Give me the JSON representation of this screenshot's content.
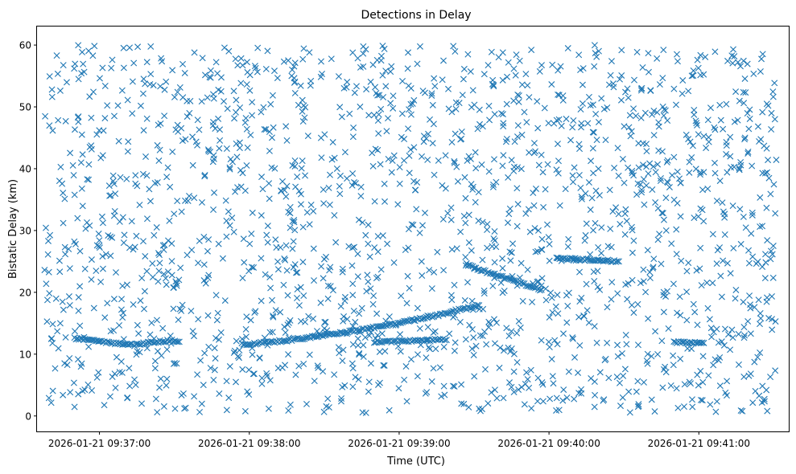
{
  "chart_data": {
    "type": "scatter",
    "title": "Detections in Delay",
    "xlabel": "Time (UTC)",
    "ylabel": "Bistatic Delay (km)",
    "x_unit": "seconds of 2026-01-21 09:36",
    "x_ticks": [
      {
        "t": 60,
        "label": "2026-01-21 09:37:00"
      },
      {
        "t": 120,
        "label": "2026-01-21 09:38:00"
      },
      {
        "t": 180,
        "label": "2026-01-21 09:39:00"
      },
      {
        "t": 240,
        "label": "2026-01-21 09:40:00"
      },
      {
        "t": 300,
        "label": "2026-01-21 09:41:00"
      }
    ],
    "y_ticks": [
      0,
      10,
      20,
      30,
      40,
      50,
      60
    ],
    "xlim": [
      35,
      336
    ],
    "ylim": [
      -2.5,
      63
    ],
    "marker": "x",
    "color": "#1f77b4",
    "grid": false,
    "track_series": [
      {
        "points": [
          [
            50,
            12.6
          ],
          [
            53,
            12.4
          ],
          [
            56,
            12.2
          ],
          [
            59,
            12.1
          ],
          [
            62,
            11.9
          ],
          [
            65,
            11.8
          ],
          [
            68,
            11.7
          ],
          [
            71,
            11.6
          ],
          [
            74,
            11.5
          ],
          [
            77,
            11.7
          ],
          [
            80,
            11.9
          ],
          [
            83,
            12.0
          ],
          [
            86,
            12.1
          ],
          [
            89,
            12.2
          ],
          [
            92,
            12.0
          ]
        ]
      },
      {
        "points": [
          [
            117,
            11.6
          ],
          [
            122,
            11.7
          ],
          [
            127,
            11.9
          ],
          [
            132,
            12.1
          ],
          [
            137,
            12.3
          ],
          [
            142,
            12.6
          ],
          [
            147,
            12.9
          ],
          [
            152,
            13.2
          ],
          [
            157,
            13.5
          ],
          [
            162,
            13.8
          ],
          [
            167,
            14.1
          ],
          [
            172,
            14.4
          ],
          [
            177,
            14.8
          ],
          [
            182,
            15.2
          ],
          [
            187,
            15.6
          ],
          [
            192,
            16.0
          ],
          [
            197,
            16.4
          ],
          [
            202,
            17.0
          ],
          [
            207,
            17.4
          ],
          [
            212,
            17.9
          ]
        ]
      },
      {
        "points": [
          [
            170,
            12.0
          ],
          [
            175,
            12.0
          ],
          [
            180,
            12.1
          ],
          [
            185,
            12.2
          ],
          [
            190,
            12.2
          ],
          [
            195,
            12.3
          ],
          [
            199,
            12.3
          ]
        ]
      },
      {
        "points": [
          [
            207,
            24.5
          ],
          [
            212,
            23.7
          ],
          [
            217,
            23.0
          ],
          [
            222,
            22.4
          ],
          [
            227,
            21.7
          ],
          [
            232,
            21.1
          ],
          [
            237,
            20.4
          ]
        ]
      },
      {
        "points": [
          [
            243,
            25.5
          ],
          [
            248,
            25.4
          ],
          [
            253,
            25.3
          ],
          [
            258,
            25.2
          ],
          [
            263,
            25.1
          ],
          [
            268,
            25.0
          ]
        ]
      },
      {
        "points": [
          [
            290,
            12.0
          ],
          [
            293,
            11.9
          ],
          [
            296,
            11.8
          ],
          [
            299,
            11.8
          ],
          [
            302,
            11.8
          ]
        ]
      }
    ],
    "clutter": {
      "count": 1850,
      "x_range": [
        38,
        331
      ],
      "y_range": [
        0.5,
        60
      ],
      "seed": 20260121
    }
  }
}
